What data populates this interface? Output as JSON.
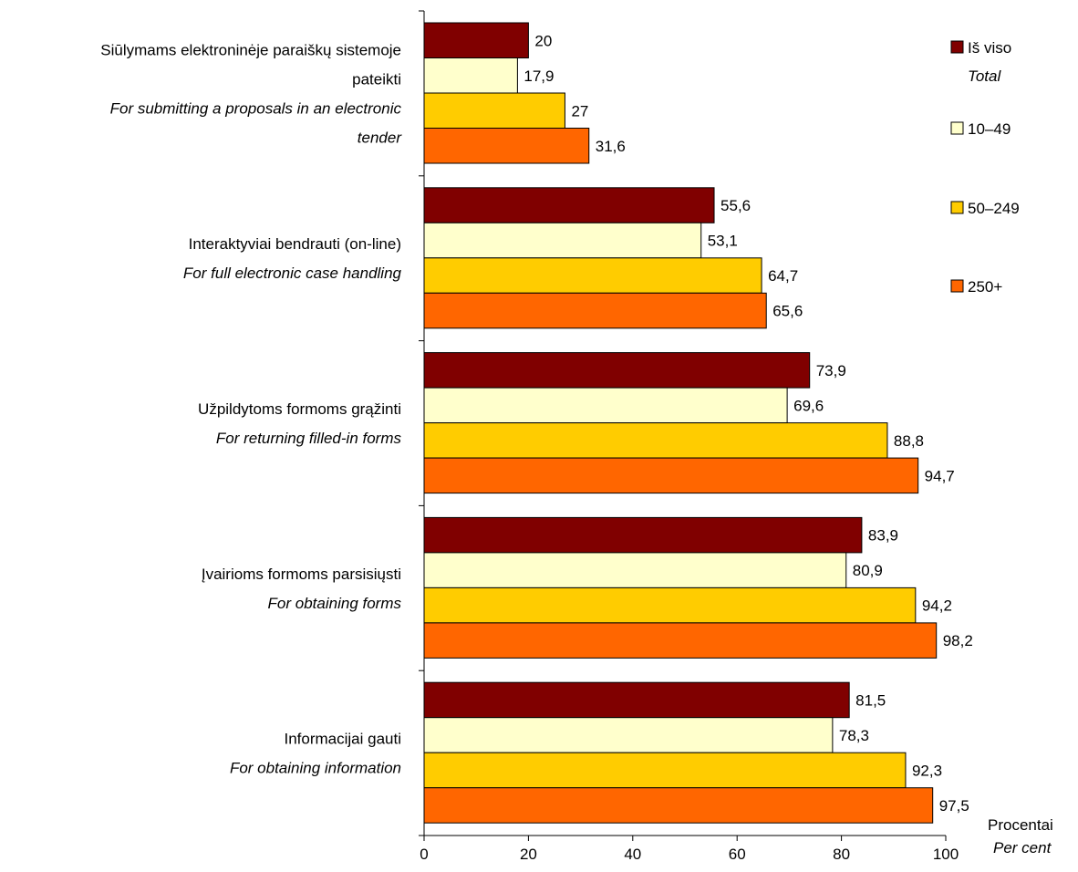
{
  "chart_data": {
    "type": "bar",
    "orientation": "horizontal",
    "categories": [
      {
        "lt": [
          "Siūlymams elektroninėje paraiškų sistemoje",
          "pateikti"
        ],
        "en": [
          "For submitting a proposals in an electronic",
          "tender"
        ]
      },
      {
        "lt": [
          "Interaktyviai bendrauti (on-line)"
        ],
        "en": [
          "For full electronic case handling"
        ]
      },
      {
        "lt": [
          "Užpildytoms formoms grąžinti"
        ],
        "en": [
          "For returning filled-in forms"
        ]
      },
      {
        "lt": [
          "Įvairioms formoms parsisiųsti"
        ],
        "en": [
          "For obtaining forms"
        ]
      },
      {
        "lt": [
          "Informacijai gauti"
        ],
        "en": [
          "For obtaining information"
        ]
      }
    ],
    "series": [
      {
        "name": "Iš viso",
        "name_en": "Total",
        "color": "#800000",
        "values": [
          20,
          55.6,
          73.9,
          83.9,
          81.5
        ],
        "labels": [
          "20",
          "55,6",
          "73,9",
          "83,9",
          "81,5"
        ]
      },
      {
        "name": "10–49",
        "color": "#FFFFCC",
        "values": [
          17.9,
          53.1,
          69.6,
          80.9,
          78.3
        ],
        "labels": [
          "17,9",
          "53,1",
          "69,6",
          "80,9",
          "78,3"
        ]
      },
      {
        "name": "50–249",
        "color": "#FFCC00",
        "values": [
          27,
          64.7,
          88.8,
          94.2,
          92.3
        ],
        "labels": [
          "27",
          "64,7",
          "88,8",
          "94,2",
          "92,3"
        ]
      },
      {
        "name": "250+",
        "color": "#FF6600",
        "values": [
          31.6,
          65.6,
          94.7,
          98.2,
          97.5
        ],
        "labels": [
          "31,6",
          "65,6",
          "94,7",
          "98,2",
          "97,5"
        ]
      }
    ],
    "xlim": [
      0,
      100
    ],
    "xticks": [
      0,
      20,
      40,
      60,
      80,
      100
    ],
    "xlabel": "Procentai",
    "xlabel_en": "Per cent",
    "grid": false,
    "legend_position": "right"
  }
}
